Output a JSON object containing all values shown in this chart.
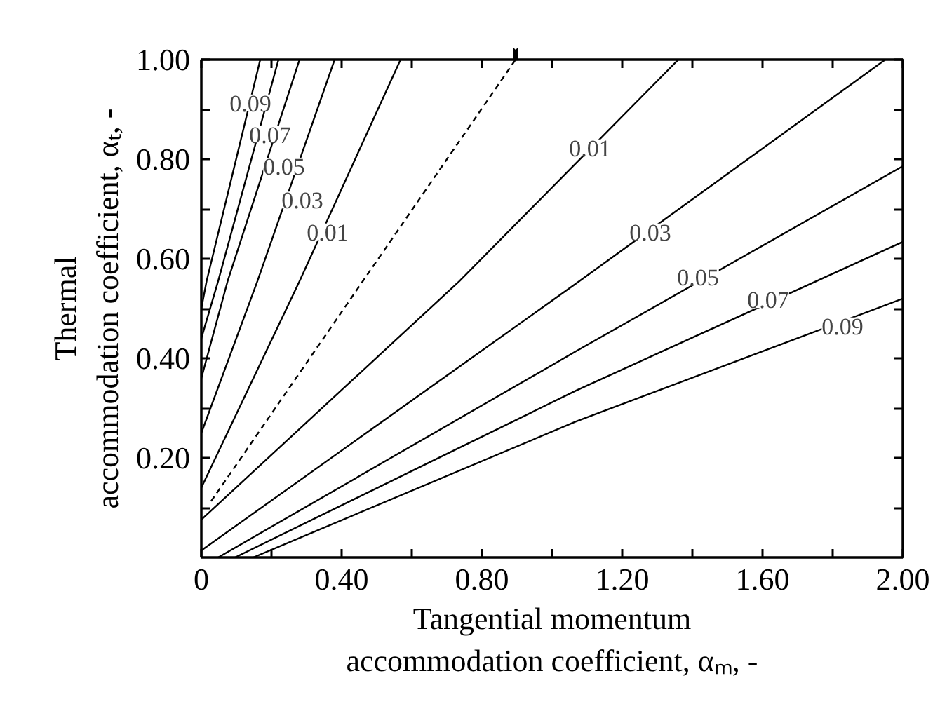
{
  "chart_data": {
    "type": "line",
    "xlabel": "Tangential momentum\naccommodation coefficient, αₘ, -",
    "ylabel": "Thermal\naccommodation coefficient, αₜ, -",
    "xlim": [
      0,
      2.0
    ],
    "ylim": [
      0,
      1.0
    ],
    "xticks": [
      {
        "value": 0,
        "label": "0"
      },
      {
        "value": 0.2,
        "label": null
      },
      {
        "value": 0.4,
        "label": "0.40"
      },
      {
        "value": 0.6,
        "label": null
      },
      {
        "value": 0.8,
        "label": "0.80"
      },
      {
        "value": 1.0,
        "label": null
      },
      {
        "value": 1.2,
        "label": "1.20"
      },
      {
        "value": 1.4,
        "label": null
      },
      {
        "value": 1.6,
        "label": "1.60"
      },
      {
        "value": 1.8,
        "label": null
      },
      {
        "value": 2.0,
        "label": "2.00"
      }
    ],
    "yticks": [
      {
        "value": 0.1,
        "label": null
      },
      {
        "value": 0.2,
        "label": "0.20"
      },
      {
        "value": 0.3,
        "label": null
      },
      {
        "value": 0.4,
        "label": "0.40"
      },
      {
        "value": 0.5,
        "label": null
      },
      {
        "value": 0.6,
        "label": "0.60"
      },
      {
        "value": 0.7,
        "label": null
      },
      {
        "value": 0.8,
        "label": "0.80"
      },
      {
        "value": 0.9,
        "label": null
      },
      {
        "value": 1.0,
        "label": "1.00"
      }
    ],
    "grid": false,
    "marker": "none",
    "line_style": "solid",
    "series": [
      {
        "color": "#000000",
        "x": [
          0,
          0.015,
          0.168
        ],
        "values": [
          0.5,
          0.555,
          1.0
        ]
      },
      {
        "color": "#000000",
        "x": [
          0,
          0.048,
          0.22
        ],
        "values": [
          0.44,
          0.555,
          1.0
        ]
      },
      {
        "color": "#000000",
        "x": [
          0,
          0.075,
          0.28
        ],
        "values": [
          0.36,
          0.555,
          1.0
        ]
      },
      {
        "color": "#000000",
        "x": [
          0,
          0.16,
          0.38
        ],
        "values": [
          0.25,
          0.555,
          1.0
        ]
      },
      {
        "color": "#000000",
        "x": [
          0,
          0.28,
          0.568
        ],
        "values": [
          0.14,
          0.555,
          1.0
        ]
      },
      {
        "color": "#000000",
        "x": [
          0.028,
          0.896
        ],
        "values": [
          0.113,
          1.0
        ],
        "line_style": "dashed"
      },
      {
        "color": "#000000",
        "x": [
          0,
          0.736,
          1.36
        ],
        "values": [
          0.076,
          0.555,
          1.0
        ]
      },
      {
        "color": "#000000",
        "x": [
          0,
          1.068,
          1.95
        ],
        "values": [
          0.014,
          0.55,
          1.0
        ]
      },
      {
        "color": "#000000",
        "x": [
          0.048,
          1.068,
          2.0
        ],
        "values": [
          0,
          0.414,
          0.786
        ]
      },
      {
        "color": "#000000",
        "x": [
          0.096,
          1.068,
          2.0
        ],
        "values": [
          0,
          0.335,
          0.634
        ]
      },
      {
        "color": "#000000",
        "x": [
          0.148,
          1.068,
          2.0
        ],
        "values": [
          0,
          0.273,
          0.52
        ]
      }
    ],
    "annotations": [
      {
        "text": "0.09",
        "x": 0.14,
        "y": 0.913
      },
      {
        "text": "0.07",
        "x": 0.196,
        "y": 0.85
      },
      {
        "text": "0.05",
        "x": 0.236,
        "y": 0.786
      },
      {
        "text": "0.03",
        "x": 0.288,
        "y": 0.718
      },
      {
        "text": "0.01",
        "x": 0.36,
        "y": 0.654
      },
      {
        "text": "0.01",
        "x": 1.108,
        "y": 0.823
      },
      {
        "text": "0.03",
        "x": 1.28,
        "y": 0.654
      },
      {
        "text": "0.05",
        "x": 1.416,
        "y": 0.563
      },
      {
        "text": "0.07",
        "x": 1.616,
        "y": 0.518
      },
      {
        "text": "0.09",
        "x": 1.828,
        "y": 0.465
      }
    ]
  }
}
